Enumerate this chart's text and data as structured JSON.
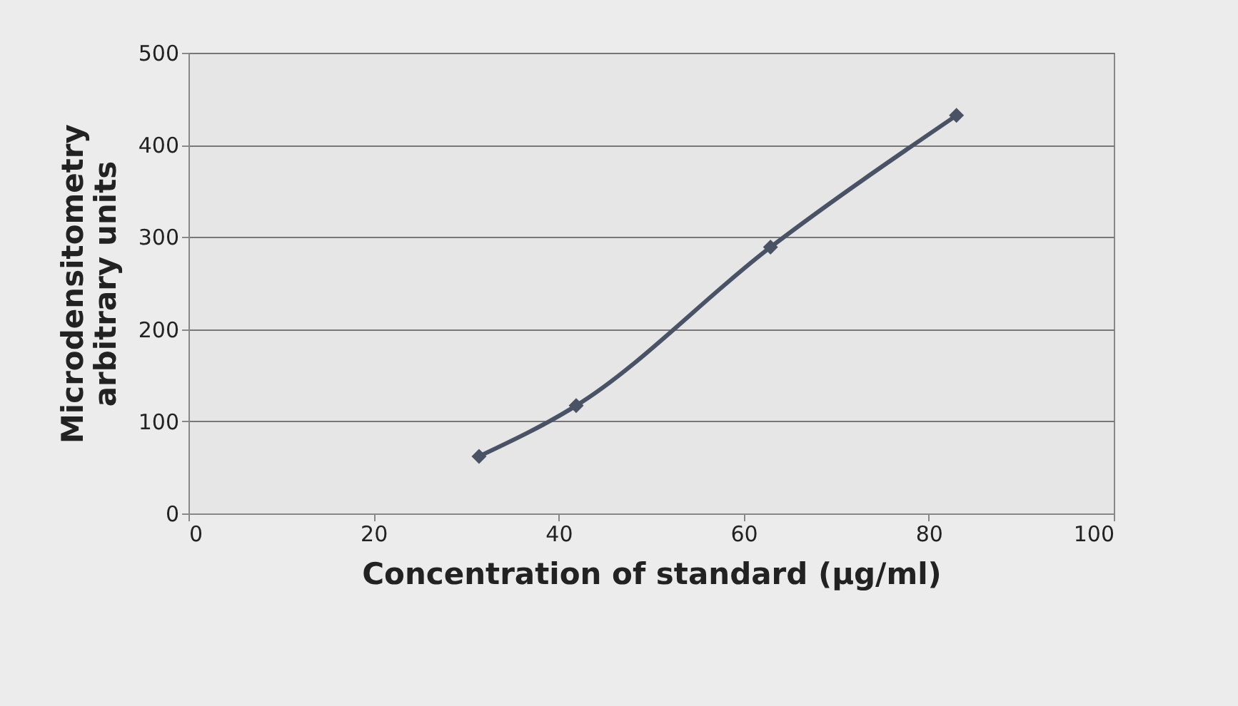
{
  "chart_data": {
    "type": "line",
    "xlabel": "Concentration of standard (µg/ml)",
    "ylabel": "Microdensitometry\narbitrary units",
    "x": [
      31.4,
      41.9,
      62.9,
      83
    ],
    "series": [
      {
        "color": "#4a5366",
        "values": [
          62,
          117,
          289,
          432
        ]
      }
    ],
    "xlim": [
      0,
      100
    ],
    "xticks": [
      0,
      20,
      40,
      60,
      80,
      100
    ],
    "ylim": [
      0,
      500
    ],
    "yticks": [
      0,
      100,
      200,
      300,
      400,
      500
    ],
    "grid": "y",
    "marker": "diamond",
    "line_style": "solid"
  }
}
